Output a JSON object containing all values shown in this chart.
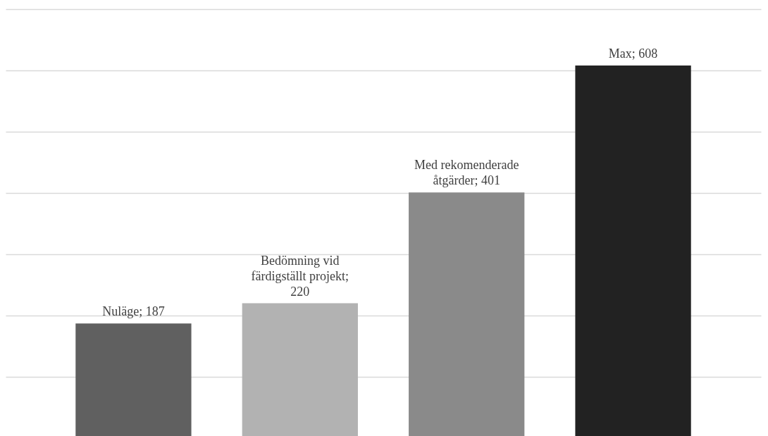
{
  "chart_data": {
    "type": "bar",
    "categories": [
      null,
      null,
      null,
      null
    ],
    "values": [
      187,
      220,
      401,
      608
    ],
    "colors": [
      "#606060",
      "#b2b2b2",
      "#8a8a8a",
      "#222222"
    ],
    "value_labels": [
      "Nuläge; 187",
      "Bedömning vid färdigställt projekt; 220",
      "Med rekomenderade åtgärder; 401",
      "Max; 608"
    ],
    "ylim": [
      0,
      700
    ],
    "yticks": [
      {
        "value": 0,
        "label": null
      },
      {
        "value": 100,
        "label": null
      },
      {
        "value": 200,
        "label": null
      },
      {
        "value": 300,
        "label": null
      },
      {
        "value": 400,
        "label": null
      },
      {
        "value": 500,
        "label": null
      },
      {
        "value": 600,
        "label": null
      },
      {
        "value": 700,
        "label": null
      }
    ],
    "grid": "y"
  }
}
